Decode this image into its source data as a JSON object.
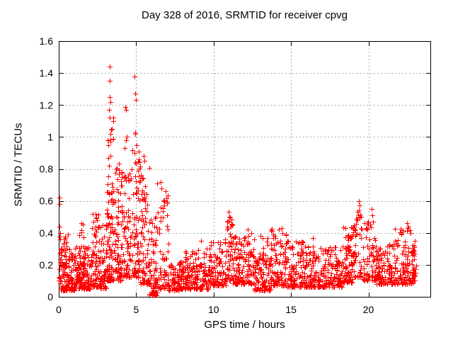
{
  "page": {
    "background": "#ffffff"
  },
  "chart_data": {
    "type": "scatter",
    "title": "Day 328 of 2016, SRMTID for receiver cpvg",
    "xlabel": "GPS time / hours",
    "ylabel": "SRMTID / TECUs",
    "xlim": [
      0,
      24
    ],
    "ylim": [
      0,
      1.6
    ],
    "xticks": [
      0,
      5,
      10,
      15,
      20
    ],
    "yticks": [
      0,
      0.2,
      0.4,
      0.6,
      0.8,
      1,
      1.2,
      1.4,
      1.6
    ],
    "grid": true,
    "legend": "none",
    "marker": "plus",
    "marker_size": 7,
    "marker_color": "#ff0000",
    "grid_color": "#a9a9a9",
    "axis_color": "#000000",
    "seed": 20161123,
    "clusters": [
      [
        0.0,
        0.15,
        14,
        0.1,
        0.45,
        1.6
      ],
      [
        0.1,
        1.05,
        125,
        0.04,
        0.3,
        1.8
      ],
      [
        0.3,
        0.6,
        15,
        0.18,
        0.42,
        1.3
      ],
      [
        1.05,
        2.1,
        140,
        0.05,
        0.32,
        1.8
      ],
      [
        1.3,
        1.65,
        14,
        0.18,
        0.46,
        1.4
      ],
      [
        2.1,
        2.65,
        70,
        0.06,
        0.52,
        2.0
      ],
      [
        2.65,
        3.1,
        60,
        0.05,
        0.46,
        1.8
      ],
      [
        3.1,
        3.45,
        85,
        0.1,
        1.05,
        2.1
      ],
      [
        3.45,
        4.1,
        95,
        0.1,
        0.86,
        2.1
      ],
      [
        4.1,
        4.65,
        70,
        0.12,
        0.8,
        2.0
      ],
      [
        4.65,
        5.25,
        85,
        0.12,
        0.92,
        2.0
      ],
      [
        5.25,
        5.85,
        70,
        0.08,
        0.85,
        2.2
      ],
      [
        5.85,
        6.35,
        55,
        0.01,
        0.5,
        1.8
      ],
      [
        6.05,
        6.3,
        18,
        0.0,
        0.08,
        1.0
      ],
      [
        6.35,
        7.1,
        65,
        0.05,
        0.72,
        2.2
      ],
      [
        7.1,
        8.1,
        90,
        0.04,
        0.22,
        1.6
      ],
      [
        8.1,
        9.7,
        150,
        0.05,
        0.3,
        1.9
      ],
      [
        9.7,
        10.8,
        110,
        0.07,
        0.36,
        1.8
      ],
      [
        10.8,
        11.25,
        45,
        0.1,
        0.5,
        1.6
      ],
      [
        11.25,
        12.6,
        140,
        0.08,
        0.4,
        2.0
      ],
      [
        12.6,
        13.7,
        110,
        0.04,
        0.38,
        1.9
      ],
      [
        13.7,
        14.7,
        100,
        0.07,
        0.44,
        2.0
      ],
      [
        14.7,
        16.1,
        130,
        0.06,
        0.35,
        1.9
      ],
      [
        16.1,
        18.3,
        210,
        0.06,
        0.32,
        2.0
      ],
      [
        18.3,
        19.0,
        80,
        0.09,
        0.45,
        1.7
      ],
      [
        19.0,
        19.6,
        50,
        0.12,
        0.55,
        1.5
      ],
      [
        19.6,
        20.45,
        65,
        0.1,
        0.5,
        1.7
      ],
      [
        20.45,
        21.6,
        110,
        0.08,
        0.33,
        1.8
      ],
      [
        21.6,
        22.85,
        110,
        0.08,
        0.44,
        1.9
      ],
      [
        22.85,
        23.1,
        30,
        0.1,
        0.33,
        1.3
      ]
    ],
    "outliers": [
      [
        0.03,
        0.62
      ],
      [
        0.06,
        0.58
      ],
      [
        0.04,
        0.44
      ],
      [
        0.1,
        0.4
      ],
      [
        2.2,
        0.52
      ],
      [
        2.25,
        0.47
      ],
      [
        3.3,
        1.44
      ],
      [
        3.3,
        1.35
      ],
      [
        3.28,
        1.25
      ],
      [
        3.33,
        1.22
      ],
      [
        3.25,
        1.17
      ],
      [
        3.3,
        1.12
      ],
      [
        3.35,
        1.02
      ],
      [
        3.2,
        0.95
      ],
      [
        3.5,
        1.12
      ],
      [
        3.5,
        1.1
      ],
      [
        3.52,
        0.99
      ],
      [
        4.3,
        1.19
      ],
      [
        4.32,
        1.17
      ],
      [
        4.4,
        1.0
      ],
      [
        4.35,
        0.98
      ],
      [
        4.25,
        0.93
      ],
      [
        4.9,
        1.38
      ],
      [
        4.95,
        1.27
      ],
      [
        4.97,
        1.23
      ],
      [
        4.95,
        1.03
      ],
      [
        4.93,
        1.02
      ],
      [
        5.05,
        0.95
      ],
      [
        5.5,
        0.88
      ],
      [
        5.55,
        0.85
      ],
      [
        6.6,
        0.72
      ],
      [
        6.65,
        0.68
      ],
      [
        9.2,
        0.35
      ],
      [
        10.95,
        0.53
      ],
      [
        11.0,
        0.5
      ],
      [
        11.0,
        0.47
      ],
      [
        10.9,
        0.44
      ],
      [
        12.2,
        0.42
      ],
      [
        14.4,
        0.43
      ],
      [
        14.45,
        0.4
      ],
      [
        16.4,
        0.37
      ],
      [
        19.4,
        0.6
      ],
      [
        19.42,
        0.57
      ],
      [
        19.38,
        0.54
      ],
      [
        19.5,
        0.5
      ],
      [
        20.2,
        0.55
      ],
      [
        20.25,
        0.51
      ],
      [
        20.3,
        0.47
      ],
      [
        22.5,
        0.46
      ],
      [
        22.55,
        0.43
      ],
      [
        23.0,
        0.35
      ]
    ]
  }
}
